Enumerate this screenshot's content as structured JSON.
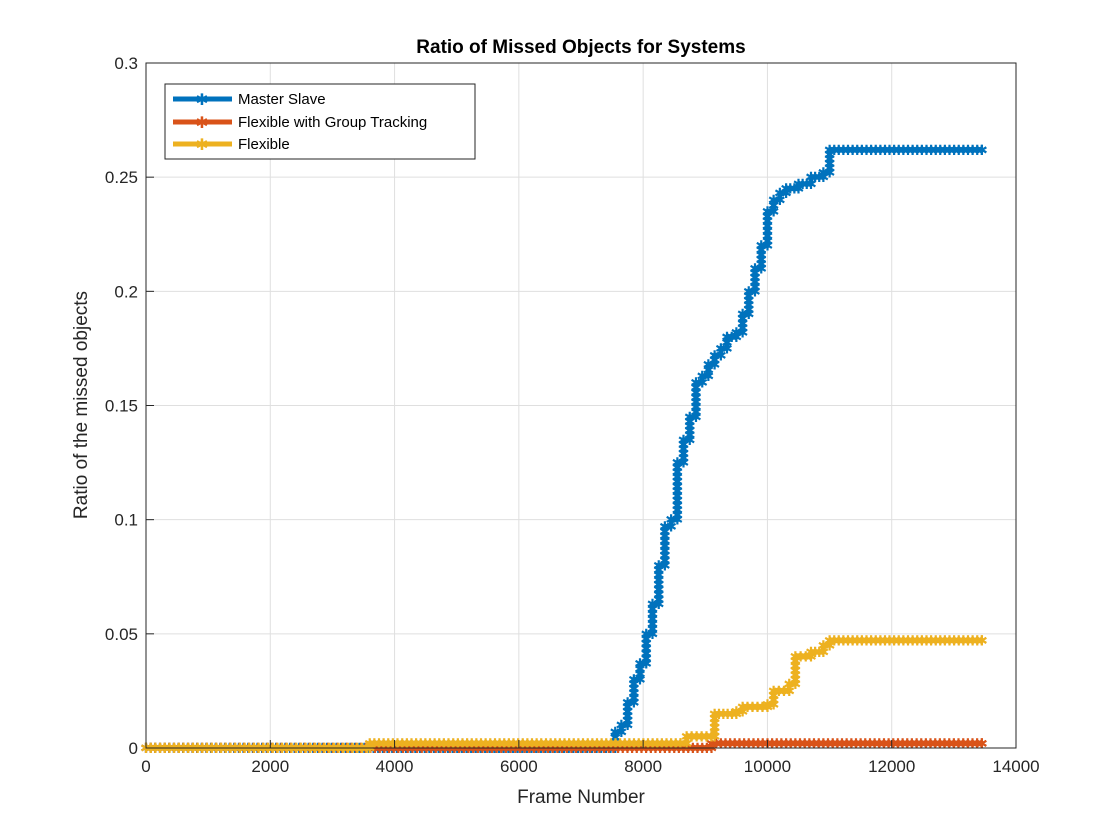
{
  "chart_data": {
    "type": "line",
    "title": "Ratio of Missed Objects for Systems",
    "xlabel": "Frame Number",
    "ylabel": "Ratio of the missed objects",
    "xlim": [
      0,
      14000
    ],
    "ylim": [
      0,
      0.3
    ],
    "xticks": [
      0,
      2000,
      4000,
      6000,
      8000,
      10000,
      12000,
      14000
    ],
    "xtick_labels": [
      "0",
      "2000",
      "4000",
      "6000",
      "8000",
      "10000",
      "12000",
      "14000"
    ],
    "yticks": [
      0,
      0.05,
      0.1,
      0.15,
      0.2,
      0.25,
      0.3
    ],
    "ytick_labels": [
      "0",
      "0.05",
      "0.1",
      "0.15",
      "0.2",
      "0.25",
      "0.3"
    ],
    "grid": true,
    "legend_position": "top-left",
    "series": [
      {
        "name": "Master Slave",
        "color": "#0072BD",
        "points": [
          [
            0,
            0
          ],
          [
            7400,
            0
          ],
          [
            7550,
            0.007
          ],
          [
            7650,
            0.01
          ],
          [
            7750,
            0.02
          ],
          [
            7850,
            0.03
          ],
          [
            7950,
            0.037
          ],
          [
            8050,
            0.05
          ],
          [
            8150,
            0.063
          ],
          [
            8250,
            0.08
          ],
          [
            8350,
            0.097
          ],
          [
            8450,
            0.1
          ],
          [
            8550,
            0.125
          ],
          [
            8650,
            0.135
          ],
          [
            8750,
            0.145
          ],
          [
            8850,
            0.16
          ],
          [
            8950,
            0.163
          ],
          [
            9050,
            0.168
          ],
          [
            9150,
            0.172
          ],
          [
            9250,
            0.175
          ],
          [
            9350,
            0.18
          ],
          [
            9500,
            0.182
          ],
          [
            9600,
            0.19
          ],
          [
            9700,
            0.2
          ],
          [
            9800,
            0.21
          ],
          [
            9900,
            0.22
          ],
          [
            10000,
            0.235
          ],
          [
            10100,
            0.24
          ],
          [
            10200,
            0.243
          ],
          [
            10300,
            0.245
          ],
          [
            10500,
            0.247
          ],
          [
            10700,
            0.25
          ],
          [
            10900,
            0.252
          ],
          [
            11000,
            0.262
          ],
          [
            13450,
            0.262
          ]
        ]
      },
      {
        "name": "Flexible with Group Tracking",
        "color": "#D95319",
        "points": [
          [
            0,
            0
          ],
          [
            8650,
            0
          ],
          [
            9100,
            0.002
          ],
          [
            13450,
            0.002
          ]
        ]
      },
      {
        "name": "Flexible",
        "color": "#EDB120",
        "points": [
          [
            0,
            0
          ],
          [
            3550,
            0
          ],
          [
            3600,
            0.002
          ],
          [
            8600,
            0.002
          ],
          [
            8700,
            0.005
          ],
          [
            9100,
            0.005
          ],
          [
            9150,
            0.015
          ],
          [
            9500,
            0.016
          ],
          [
            9600,
            0.018
          ],
          [
            10000,
            0.019
          ],
          [
            10100,
            0.025
          ],
          [
            10350,
            0.028
          ],
          [
            10450,
            0.04
          ],
          [
            10700,
            0.042
          ],
          [
            10900,
            0.045
          ],
          [
            11000,
            0.047
          ],
          [
            13450,
            0.047
          ]
        ]
      }
    ]
  }
}
